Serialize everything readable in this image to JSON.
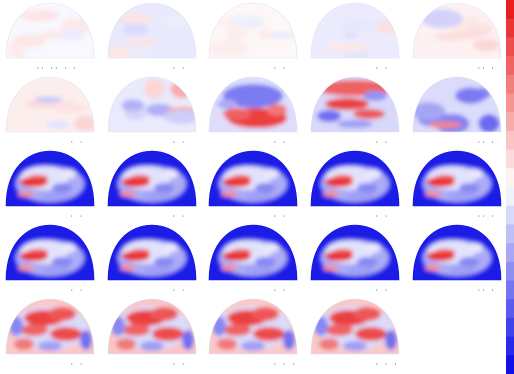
{
  "figure": {
    "rows": 5,
    "cols": 5,
    "panel_count": 24
  },
  "colormap": {
    "positive": "#e81e1e",
    "neutral": "#ffffff",
    "negative": "#1010e6"
  },
  "panels": [
    {
      "index": 1,
      "intensity": 0.12,
      "bias": "mixed",
      "blue_rim": false,
      "dots": "·· ·· · ·"
    },
    {
      "index": 2,
      "intensity": 0.15,
      "bias": "blue",
      "blue_rim": false,
      "dots": "· ·"
    },
    {
      "index": 3,
      "intensity": 0.1,
      "bias": "red",
      "blue_rim": false,
      "dots": "· ·"
    },
    {
      "index": 4,
      "intensity": 0.14,
      "bias": "blue",
      "blue_rim": false,
      "dots": "· ·"
    },
    {
      "index": 5,
      "intensity": 0.18,
      "bias": "red",
      "blue_rim": false,
      "dots": "·· ·"
    },
    {
      "index": 6,
      "intensity": 0.22,
      "bias": "red",
      "blue_rim": false,
      "dots": "· ·"
    },
    {
      "index": 7,
      "intensity": 0.35,
      "bias": "mixed",
      "blue_rim": false,
      "dots": "· ·"
    },
    {
      "index": 8,
      "intensity": 0.55,
      "bias": "red-bottom",
      "blue_rim": false,
      "dots": "· ·"
    },
    {
      "index": 9,
      "intensity": 0.65,
      "bias": "red-top",
      "blue_rim": false,
      "dots": "· ·"
    },
    {
      "index": 10,
      "intensity": 0.6,
      "bias": "mixed",
      "blue_rim": false,
      "dots": "·· ·"
    },
    {
      "index": 11,
      "intensity": 0.7,
      "bias": "center-red",
      "blue_rim": true,
      "dots": "· ·"
    },
    {
      "index": 12,
      "intensity": 0.72,
      "bias": "center-red",
      "blue_rim": true,
      "dots": "· ·"
    },
    {
      "index": 13,
      "intensity": 0.85,
      "bias": "center-red",
      "blue_rim": true,
      "dots": "· ·"
    },
    {
      "index": 14,
      "intensity": 0.88,
      "bias": "center-red",
      "blue_rim": true,
      "dots": "· ·"
    },
    {
      "index": 15,
      "intensity": 0.9,
      "bias": "center-red",
      "blue_rim": true,
      "dots": "·· ·"
    },
    {
      "index": 16,
      "intensity": 0.92,
      "bias": "center-red",
      "blue_rim": true,
      "dots": "· ·"
    },
    {
      "index": 17,
      "intensity": 0.9,
      "bias": "center-red",
      "blue_rim": true,
      "dots": "· ·"
    },
    {
      "index": 18,
      "intensity": 0.85,
      "bias": "center-red",
      "blue_rim": true,
      "dots": "· ·"
    },
    {
      "index": 19,
      "intensity": 0.8,
      "bias": "center-red",
      "blue_rim": true,
      "dots": "· ·"
    },
    {
      "index": 20,
      "intensity": 0.78,
      "bias": "center-red",
      "blue_rim": true,
      "dots": "·· ·"
    },
    {
      "index": 21,
      "intensity": 0.7,
      "bias": "red-wide",
      "blue_rim": false,
      "dots": "· ·"
    },
    {
      "index": 22,
      "intensity": 0.72,
      "bias": "red-wide",
      "blue_rim": false,
      "dots": "· ·"
    },
    {
      "index": 23,
      "intensity": 0.68,
      "bias": "red-wide",
      "blue_rim": false,
      "dots": "· · ·"
    },
    {
      "index": 24,
      "intensity": 0.7,
      "bias": "red-wide",
      "blue_rim": false,
      "dots": "· · ·"
    }
  ]
}
